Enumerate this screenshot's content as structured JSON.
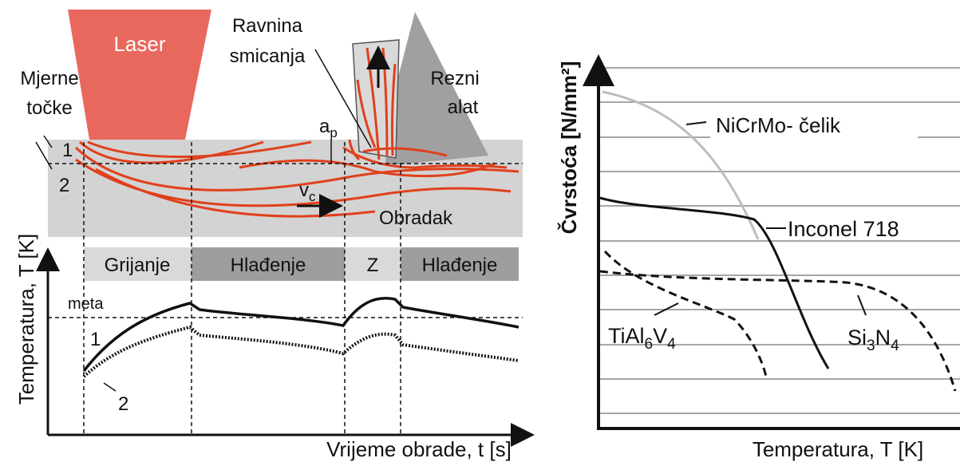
{
  "left": {
    "laser": "Laser",
    "shear_plane": [
      "Ravnina",
      "smicanja"
    ],
    "tool": [
      "Rezni",
      "alat"
    ],
    "measuring_points": [
      "Mjerne",
      "točke"
    ],
    "point_labels": [
      "1",
      "2"
    ],
    "depth": {
      "main": "a",
      "sub": "p"
    },
    "speed": {
      "main": "v",
      "sub": "c"
    },
    "workpiece": "Obradak",
    "phases": [
      "Grijanje",
      "Hlađenje",
      "Z",
      "Hlađenje"
    ],
    "target": "meta",
    "curve_labels": [
      "1",
      "2"
    ],
    "y_label": "Temperatura, T [K]",
    "x_label": "Vrijeme obrade, t [s]"
  },
  "right": {
    "y_label": "Čvrstoća  [N/mm²]",
    "x_label": "Temperatura, T [K]",
    "materials": {
      "nicrmo": "NiCrMo- čelik",
      "inconel": "Inconel 718",
      "tial": [
        {
          "main": "TiAl",
          "sub": "6"
        },
        {
          "main": "V",
          "sub": "4"
        }
      ],
      "si3n4": [
        {
          "main": "Si",
          "sub": "3"
        },
        {
          "main": "N",
          "sub": "4"
        }
      ]
    }
  }
}
